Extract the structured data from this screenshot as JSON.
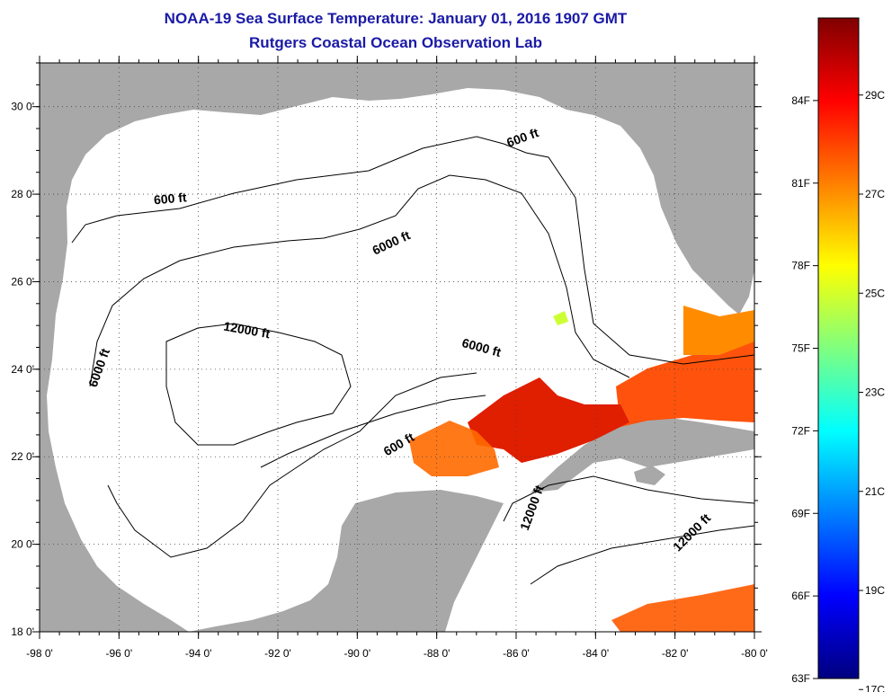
{
  "title": "NOAA-19 Sea Surface Temperature:  January 01, 2016 1907 GMT",
  "subtitle": "Rutgers Coastal Ocean Observation Lab",
  "map": {
    "lon_range": [
      -98,
      -80
    ],
    "lat_range": [
      18,
      31
    ],
    "lon_ticks": [
      {
        "value": -98,
        "label": "-98 0'"
      },
      {
        "value": -96,
        "label": "-96 0'"
      },
      {
        "value": -94,
        "label": "-94 0'"
      },
      {
        "value": -92,
        "label": "-92 0'"
      },
      {
        "value": -90,
        "label": "-90 0'"
      },
      {
        "value": -88,
        "label": "-88 0'"
      },
      {
        "value": -86,
        "label": "-86 0'"
      },
      {
        "value": -84,
        "label": "-84 0'"
      },
      {
        "value": -82,
        "label": "-82 0'"
      },
      {
        "value": -80,
        "label": "-80 0'"
      }
    ],
    "lat_ticks": [
      {
        "value": 18,
        "label": "18 0'"
      },
      {
        "value": 20,
        "label": "20 0'"
      },
      {
        "value": 22,
        "label": "22 0'"
      },
      {
        "value": 24,
        "label": "24 0'"
      },
      {
        "value": 26,
        "label": "26 0'"
      },
      {
        "value": 28,
        "label": "28 0'"
      },
      {
        "value": 30,
        "label": "30 0'"
      }
    ],
    "land_color": "#a8a8a8",
    "ocean_color": "#ffffff",
    "contour_labels": [
      {
        "text": "600 ft",
        "lon": -85.8,
        "lat": 29.2
      },
      {
        "text": "600 ft",
        "lon": -94.7,
        "lat": 27.8
      },
      {
        "text": "6000 ft",
        "lon": -89.1,
        "lat": 26.8
      },
      {
        "text": "6000 ft",
        "lon": -96.4,
        "lat": 24.0
      },
      {
        "text": "12000 ft",
        "lon": -92.8,
        "lat": 24.8
      },
      {
        "text": "6000 ft",
        "lon": -86.9,
        "lat": 24.4
      },
      {
        "text": "600 ft",
        "lon": -88.9,
        "lat": 22.2
      },
      {
        "text": "12000 ft",
        "lon": -85.5,
        "lat": 20.8
      },
      {
        "text": "12000 ft",
        "lon": -81.5,
        "lat": 20.2
      }
    ]
  },
  "colorbar": {
    "colors": [
      "#00007f",
      "#0000ff",
      "#007fff",
      "#00ffff",
      "#7fff7f",
      "#ffff00",
      "#ff7f00",
      "#ff0000",
      "#7f0000"
    ],
    "fahrenheit_labels": [
      {
        "label": "63F",
        "value": 63
      },
      {
        "label": "66F",
        "value": 66
      },
      {
        "label": "69F",
        "value": 69
      },
      {
        "label": "72F",
        "value": 72
      },
      {
        "label": "75F",
        "value": 75
      },
      {
        "label": "78F",
        "value": 78
      },
      {
        "label": "81F",
        "value": 81
      },
      {
        "label": "84F",
        "value": 84
      }
    ],
    "celsius_labels": [
      {
        "label": "17C",
        "value": 17
      },
      {
        "label": "19C",
        "value": 19
      },
      {
        "label": "21C",
        "value": 21
      },
      {
        "label": "23C",
        "value": 23
      },
      {
        "label": "25C",
        "value": 25
      },
      {
        "label": "27C",
        "value": 27
      },
      {
        "label": "29C",
        "value": 29
      }
    ],
    "range_f": [
      63,
      87
    ]
  }
}
